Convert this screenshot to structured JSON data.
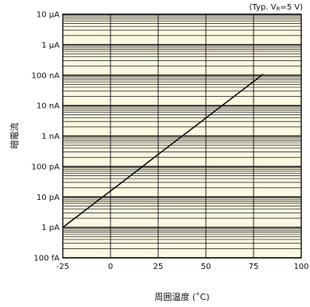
{
  "chart_data": {
    "type": "line",
    "note": "(Typ. V",
    "note_sub": "R",
    "note_tail": "=5 V)",
    "xlabel": "周囲温度 (˚C)",
    "ylabel": "暗電流",
    "x_ticks": [
      -25,
      0,
      25,
      50,
      75,
      100
    ],
    "xlim": [
      -25,
      100
    ],
    "y_scale": "log",
    "y_ticks": [
      {
        "value": 1e-13,
        "label": "100 fA"
      },
      {
        "value": 1e-12,
        "label": "1 pA"
      },
      {
        "value": 1e-11,
        "label": "10 pA"
      },
      {
        "value": 1e-10,
        "label": "100 pA"
      },
      {
        "value": 1e-09,
        "label": "1 nA"
      },
      {
        "value": 1e-08,
        "label": "10 nA"
      },
      {
        "value": 1e-07,
        "label": "100 nA"
      },
      {
        "value": 1e-06,
        "label": "1 μA"
      },
      {
        "value": 1e-05,
        "label": "10 μA"
      }
    ],
    "ylim": [
      1e-13,
      1e-05
    ],
    "grid": true,
    "plot_bg": "#fdf8e1",
    "line_color": "#111111",
    "series": [
      {
        "x": [
          -25,
          -15,
          -5,
          5,
          15,
          25,
          35,
          45,
          55,
          65,
          75,
          80
        ],
        "y": [
          1e-12,
          3e-12,
          9.1e-12,
          2.7e-11,
          8.2e-11,
          2.5e-10,
          7.5e-10,
          2.25e-09,
          6.8e-09,
          2.05e-08,
          6.2e-08,
          1.08e-07
        ]
      }
    ]
  }
}
